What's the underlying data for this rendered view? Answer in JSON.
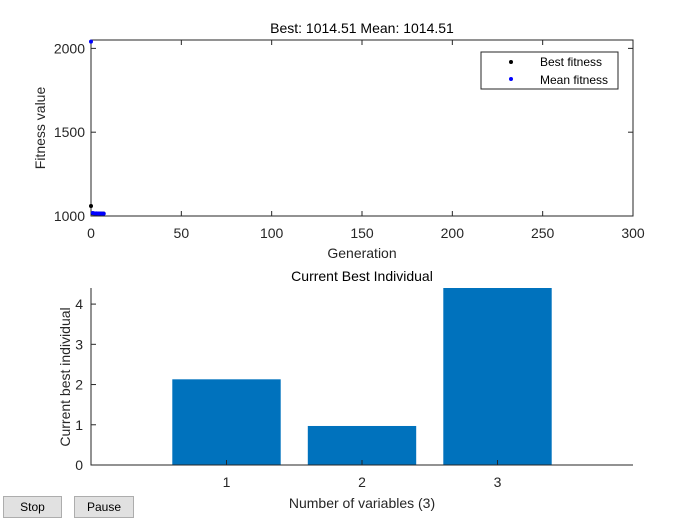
{
  "chart_data": [
    {
      "type": "scatter",
      "title": "Best: 1014.51 Mean: 1014.51",
      "xlabel": "Generation",
      "ylabel": "Fitness value",
      "xlim": [
        0,
        300
      ],
      "ylim": [
        1000,
        2050
      ],
      "xticks": [
        0,
        50,
        100,
        150,
        200,
        250,
        300
      ],
      "yticks": [
        1000,
        1500,
        2000
      ],
      "legend_position": "top-right",
      "series": [
        {
          "name": "Best fitness",
          "color": "#000000",
          "x": [
            0,
            1,
            2,
            3,
            4,
            5,
            6,
            7
          ],
          "y": [
            1060,
            1016,
            1015,
            1015,
            1014.6,
            1014.5,
            1014.51,
            1014.51
          ]
        },
        {
          "name": "Mean fitness",
          "color": "#0000ff",
          "x": [
            0,
            1,
            2,
            3,
            4,
            5,
            6,
            7
          ],
          "y": [
            2040,
            1018,
            1016,
            1015.5,
            1015,
            1014.6,
            1014.51,
            1014.51
          ]
        }
      ]
    },
    {
      "type": "bar",
      "title": "Current Best Individual",
      "xlabel": "Number of variables (3)",
      "ylabel": "Current best individual",
      "categories": [
        "1",
        "2",
        "3"
      ],
      "values": [
        2.13,
        0.97,
        4.4
      ],
      "xlim": [
        0,
        4
      ],
      "ylim": [
        0,
        4.4
      ],
      "yticks": [
        0,
        1,
        2,
        3,
        4
      ],
      "bar_color": "#0072bd"
    }
  ],
  "buttons": {
    "stop_label": "Stop",
    "pause_label": "Pause"
  }
}
